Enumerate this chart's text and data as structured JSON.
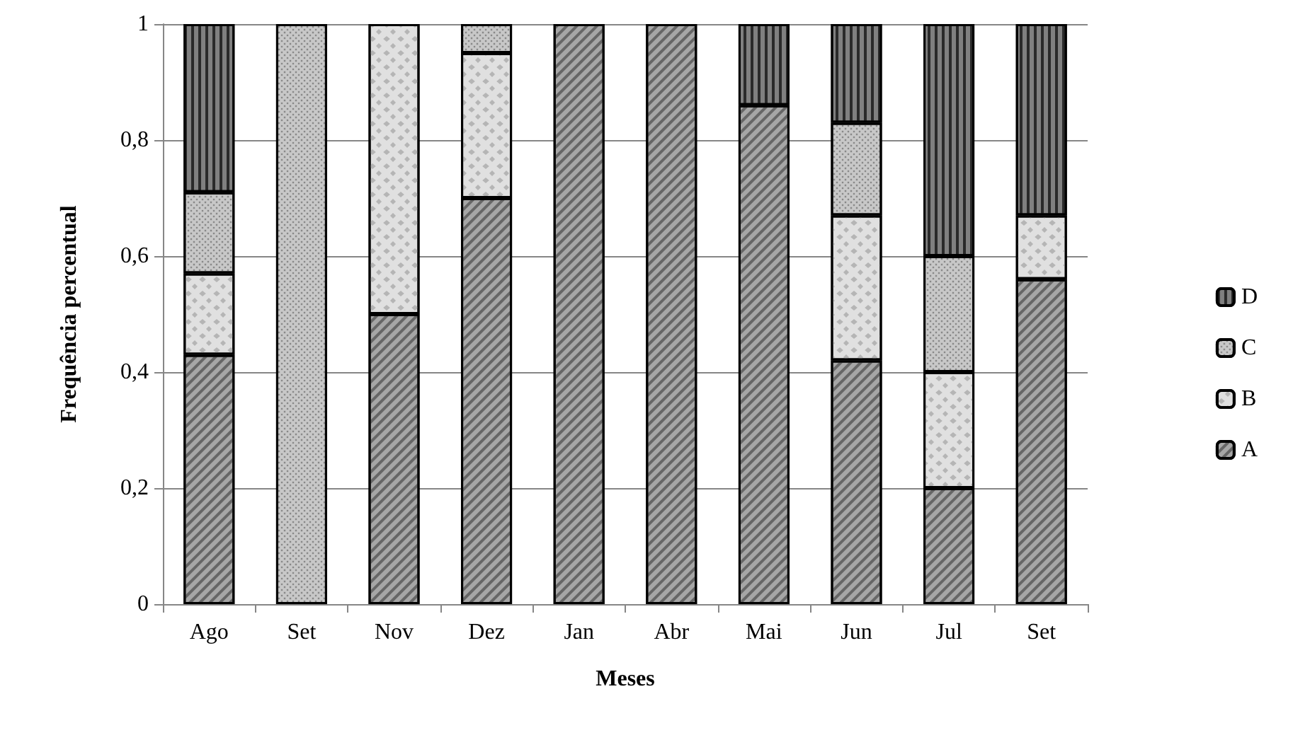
{
  "chart_data": {
    "type": "bar",
    "stacked": true,
    "xlabel": "Meses",
    "ylabel": "Frequência percentual",
    "categories": [
      "Ago",
      "Set",
      "Nov",
      "Dez",
      "Jan",
      "Abr",
      "Mai",
      "Jun",
      "Jul",
      "Set"
    ],
    "series": [
      {
        "name": "A",
        "color": "#a6a6a6",
        "values": [
          0.43,
          0,
          0.5,
          0.7,
          1,
          1,
          0.86,
          0.42,
          0.2,
          0.56
        ]
      },
      {
        "name": "B",
        "color": "#e0e0e0",
        "values": [
          0.14,
          0,
          0.5,
          0.25,
          0,
          0,
          0,
          0.25,
          0.2,
          0.11
        ]
      },
      {
        "name": "C",
        "color": "#c8c8c8",
        "values": [
          0.14,
          1,
          0,
          0.05,
          0,
          0,
          0,
          0.16,
          0.2,
          0
        ]
      },
      {
        "name": "D",
        "color": "#808080",
        "values": [
          0.29,
          0,
          0,
          0,
          0,
          0,
          0.14,
          0.17,
          0.4,
          0.33
        ]
      }
    ],
    "ylim": [
      0,
      1
    ],
    "yticks": [
      0,
      {
        "value": 0.2,
        "label": "0,2"
      },
      {
        "value": 0.4,
        "label": "0,4"
      },
      {
        "value": 0.6,
        "label": "0,6"
      },
      {
        "value": 0.8,
        "label": "0,8"
      },
      1
    ],
    "grid": "y",
    "legend": "right"
  }
}
